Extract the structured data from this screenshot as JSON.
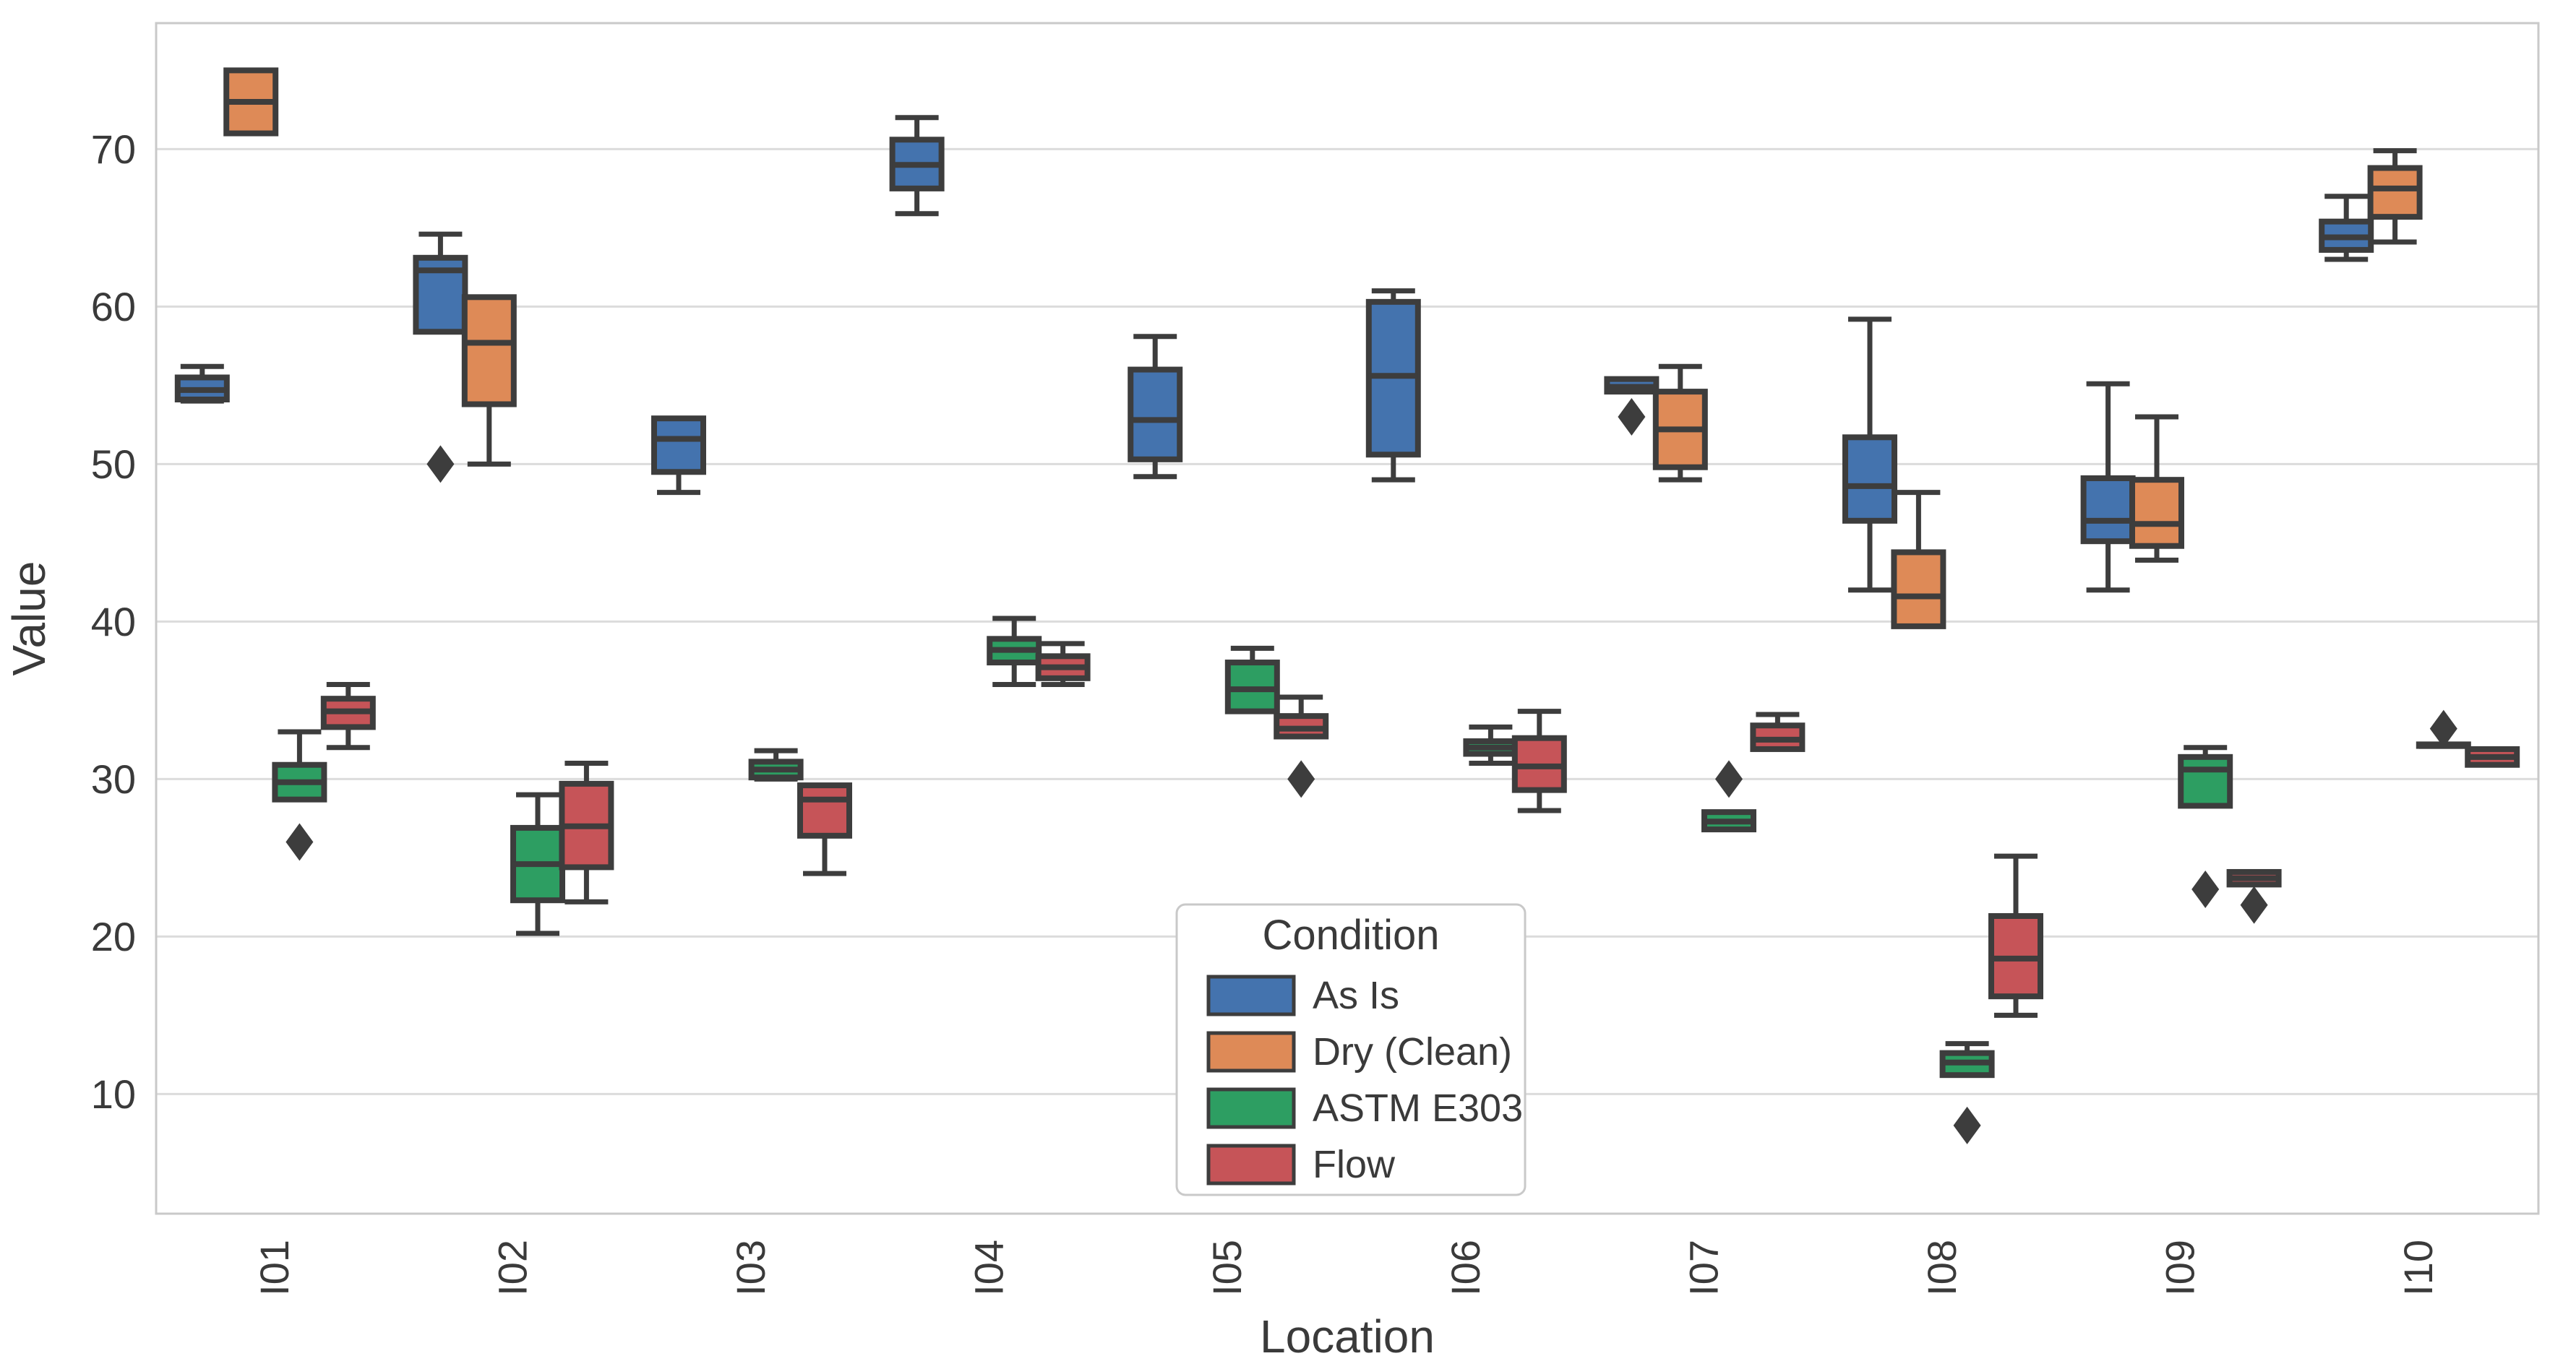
{
  "figure": {
    "xlabel": "Location",
    "ylabel": "Value",
    "legend_title": "Condition",
    "background": "#ffffff",
    "grid_color": "#dcdcdc",
    "spine_color": "#c9c9c9",
    "text_color": "#3a3a3a",
    "box_edge_color": "#3d3d3d"
  },
  "chart_data": {
    "type": "box",
    "title": "",
    "xlabel": "Location",
    "ylabel": "Value",
    "categories": [
      "I01",
      "I02",
      "I03",
      "I04",
      "I05",
      "I06",
      "I07",
      "I08",
      "I09",
      "I10"
    ],
    "yticks": [
      10,
      20,
      30,
      40,
      50,
      60,
      70
    ],
    "ylim": [
      2.4,
      78
    ],
    "grid": "horizontal-only",
    "legend": {
      "title": "Condition",
      "position": "lower-center-inside"
    },
    "series": [
      {
        "name": "As Is",
        "color": "#4473ae",
        "boxes": {
          "I01": {
            "whislo": 54.0,
            "q1": 54.1,
            "med": 54.7,
            "q3": 55.5,
            "whishi": 56.2,
            "fliers": []
          },
          "I02": {
            "whislo": 58.4,
            "q1": 58.4,
            "med": 62.3,
            "q3": 63.1,
            "whishi": 64.6,
            "fliers": [
              50
            ]
          },
          "I03": {
            "whislo": 48.2,
            "q1": 49.5,
            "med": 51.6,
            "q3": 52.9,
            "whishi": 52.9,
            "fliers": []
          },
          "I04": {
            "whislo": 65.9,
            "q1": 67.5,
            "med": 69.0,
            "q3": 70.6,
            "whishi": 72.0,
            "fliers": []
          },
          "I05": {
            "whislo": 49.2,
            "q1": 50.3,
            "med": 52.8,
            "q3": 56.0,
            "whishi": 58.1,
            "fliers": []
          },
          "I06": {
            "whislo": 49.0,
            "q1": 50.6,
            "med": 55.6,
            "q3": 60.3,
            "whishi": 61.0,
            "fliers": []
          },
          "I07": {
            "whislo": 54.6,
            "q1": 54.6,
            "med": 54.9,
            "q3": 55.4,
            "whishi": 55.4,
            "fliers": [
              53
            ]
          },
          "I08": {
            "whislo": 42.0,
            "q1": 46.4,
            "med": 48.6,
            "q3": 51.7,
            "whishi": 59.2,
            "fliers": []
          },
          "I09": {
            "whislo": 42.0,
            "q1": 45.1,
            "med": 46.4,
            "q3": 49.1,
            "whishi": 55.1,
            "fliers": []
          },
          "I10": {
            "whislo": 63.0,
            "q1": 63.6,
            "med": 64.4,
            "q3": 65.4,
            "whishi": 67.0,
            "fliers": []
          }
        }
      },
      {
        "name": "Dry (Clean)",
        "color": "#de8a57",
        "boxes": {
          "I01": {
            "whislo": 71.0,
            "q1": 71.0,
            "med": 73.0,
            "q3": 75.0,
            "whishi": 75.0,
            "fliers": []
          },
          "I02": {
            "whislo": 50.0,
            "q1": 53.8,
            "med": 57.7,
            "q3": 60.6,
            "whishi": 60.6,
            "fliers": []
          },
          "I03": null,
          "I04": null,
          "I05": null,
          "I06": null,
          "I07": {
            "whislo": 49.0,
            "q1": 49.8,
            "med": 52.2,
            "q3": 54.6,
            "whishi": 56.2,
            "fliers": []
          },
          "I08": {
            "whislo": 39.7,
            "q1": 39.7,
            "med": 41.6,
            "q3": 44.4,
            "whishi": 48.2,
            "fliers": []
          },
          "I09": {
            "whislo": 43.9,
            "q1": 44.8,
            "med": 46.2,
            "q3": 49.0,
            "whishi": 53.0,
            "fliers": []
          },
          "I10": {
            "whislo": 64.1,
            "q1": 65.7,
            "med": 67.5,
            "q3": 68.8,
            "whishi": 69.9,
            "fliers": []
          }
        }
      },
      {
        "name": "ASTM E303",
        "color": "#2d9e62",
        "boxes": {
          "I01": {
            "whislo": 28.7,
            "q1": 28.7,
            "med": 29.8,
            "q3": 30.9,
            "whishi": 33.0,
            "fliers": [
              26
            ]
          },
          "I02": {
            "whislo": 20.2,
            "q1": 22.3,
            "med": 24.6,
            "q3": 26.9,
            "whishi": 29.0,
            "fliers": []
          },
          "I03": {
            "whislo": 30.0,
            "q1": 30.1,
            "med": 30.6,
            "q3": 31.1,
            "whishi": 31.8,
            "fliers": []
          },
          "I04": {
            "whislo": 36.0,
            "q1": 37.4,
            "med": 38.2,
            "q3": 38.9,
            "whishi": 40.2,
            "fliers": []
          },
          "I05": {
            "whislo": 34.3,
            "q1": 34.3,
            "med": 35.7,
            "q3": 37.4,
            "whishi": 38.3,
            "fliers": []
          },
          "I06": {
            "whislo": 31.0,
            "q1": 31.6,
            "med": 32.0,
            "q3": 32.4,
            "whishi": 33.3,
            "fliers": []
          },
          "I07": {
            "whislo": 26.8,
            "q1": 26.8,
            "med": 27.3,
            "q3": 27.9,
            "whishi": 27.9,
            "fliers": [
              30
            ]
          },
          "I08": {
            "whislo": 11.2,
            "q1": 11.2,
            "med": 12.0,
            "q3": 12.6,
            "whishi": 13.2,
            "fliers": [
              8
            ]
          },
          "I09": {
            "whislo": 28.3,
            "q1": 28.3,
            "med": 30.6,
            "q3": 31.4,
            "whishi": 32.0,
            "fliers": [
              23
            ]
          },
          "I10": {
            "whislo": 32.1,
            "q1": 32.1,
            "med": 32.1,
            "q3": 32.2,
            "whishi": 32.2,
            "fliers": [
              33.2
            ]
          }
        }
      },
      {
        "name": "Flow",
        "color": "#c65458",
        "boxes": {
          "I01": {
            "whislo": 32.0,
            "q1": 33.3,
            "med": 34.3,
            "q3": 35.1,
            "whishi": 36.0,
            "fliers": []
          },
          "I02": {
            "whislo": 22.2,
            "q1": 24.4,
            "med": 27.0,
            "q3": 29.7,
            "whishi": 31.0,
            "fliers": []
          },
          "I03": {
            "whislo": 24.0,
            "q1": 26.4,
            "med": 28.7,
            "q3": 29.6,
            "whishi": 29.6,
            "fliers": []
          },
          "I04": {
            "whislo": 36.0,
            "q1": 36.4,
            "med": 37.1,
            "q3": 37.8,
            "whishi": 38.6,
            "fliers": []
          },
          "I05": {
            "whislo": 32.7,
            "q1": 32.7,
            "med": 33.2,
            "q3": 34.0,
            "whishi": 35.2,
            "fliers": [
              30
            ]
          },
          "I06": {
            "whislo": 28.0,
            "q1": 29.3,
            "med": 30.8,
            "q3": 32.6,
            "whishi": 34.3,
            "fliers": []
          },
          "I07": {
            "whislo": 31.9,
            "q1": 31.9,
            "med": 32.5,
            "q3": 33.4,
            "whishi": 34.1,
            "fliers": []
          },
          "I08": {
            "whislo": 15.0,
            "q1": 16.2,
            "med": 18.6,
            "q3": 21.3,
            "whishi": 25.1,
            "fliers": []
          },
          "I09": {
            "whislo": 23.3,
            "q1": 23.3,
            "med": 23.7,
            "q3": 24.1,
            "whishi": 24.1,
            "fliers": [
              22
            ]
          },
          "I10": {
            "whislo": 30.9,
            "q1": 30.9,
            "med": 31.4,
            "q3": 31.9,
            "whishi": 31.9,
            "fliers": []
          }
        }
      }
    ]
  }
}
